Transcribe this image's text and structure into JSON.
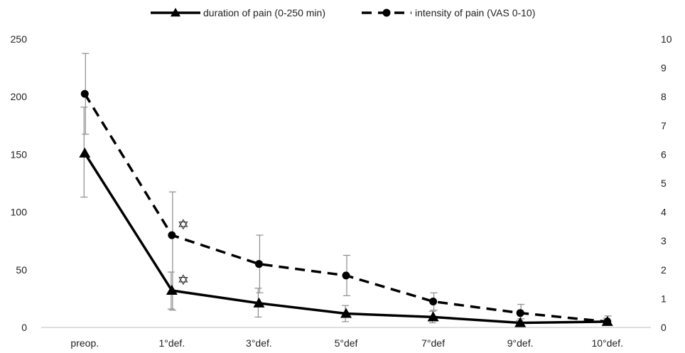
{
  "chart_data": {
    "type": "line",
    "categories": [
      "preop.",
      "1°def.",
      "3°def.",
      "5°def",
      "7°def",
      "9°def.",
      "10°def."
    ],
    "series": [
      {
        "name": "duration of pain (0-250 min)",
        "axis": "left",
        "style": "solid",
        "marker": "triangle",
        "values": [
          151,
          32,
          21,
          12,
          9,
          4,
          5
        ],
        "error_low": [
          113,
          16,
          9,
          5,
          4,
          2,
          2
        ],
        "error_high": [
          191,
          48,
          34,
          19,
          14,
          6,
          8
        ]
      },
      {
        "name": "intensity of pain (VAS 0-10)",
        "axis": "right",
        "style": "dashed",
        "marker": "circle",
        "values": [
          8.1,
          3.2,
          2.2,
          1.8,
          0.9,
          0.5,
          0.2
        ],
        "error_low": [
          6.7,
          0.6,
          1.2,
          1.1,
          0.6,
          0.3,
          0.1
        ],
        "error_high": [
          9.5,
          4.7,
          3.2,
          2.5,
          1.2,
          0.8,
          0.4
        ]
      }
    ],
    "y_left": {
      "ylim": [
        0,
        250
      ],
      "ticks": [
        "0",
        "50",
        "100",
        "150",
        "200",
        "250"
      ]
    },
    "y_right": {
      "ylim": [
        0,
        10
      ],
      "ticks": [
        "0",
        "1",
        "2",
        "3",
        "4",
        "5",
        "6",
        "7",
        "8",
        "9",
        "10"
      ]
    },
    "annotations": [
      {
        "symbol": "✡",
        "series": "duration of pain (0-250 min)",
        "category": "1°def."
      },
      {
        "symbol": "✡",
        "series": "intensity of pain (VAS 0-10)",
        "category": "1°def."
      }
    ],
    "grid": false,
    "legend": "top-center",
    "colors": {
      "lines": "#000000",
      "error_bars": "#8c8c8c",
      "axis": "#bfbfbf",
      "text": "#222222"
    }
  }
}
